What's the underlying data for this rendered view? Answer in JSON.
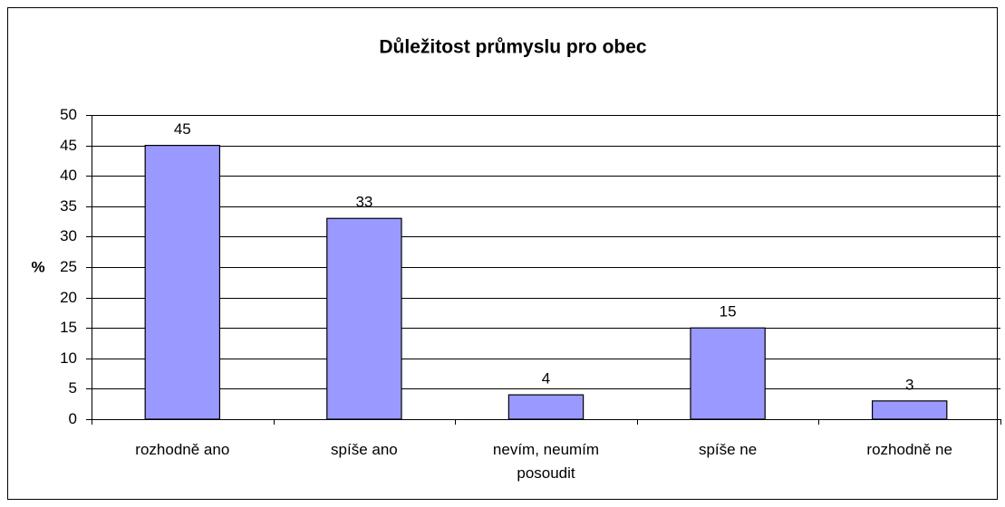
{
  "chart_data": {
    "type": "bar",
    "title": "Důležitost průmyslu pro obec",
    "y_label": "%",
    "categories": [
      "rozhodně ano",
      "spíše ano",
      "nevím, neumím posoudit",
      "spíše ne",
      "rozhodně ne"
    ],
    "values": [
      45,
      33,
      4,
      15,
      3
    ],
    "color": "#9999ff",
    "ylim": [
      0,
      50
    ],
    "yticks": [
      0,
      5,
      10,
      15,
      20,
      25,
      30,
      35,
      40,
      45,
      50
    ],
    "grid": true,
    "data_labels": true
  }
}
